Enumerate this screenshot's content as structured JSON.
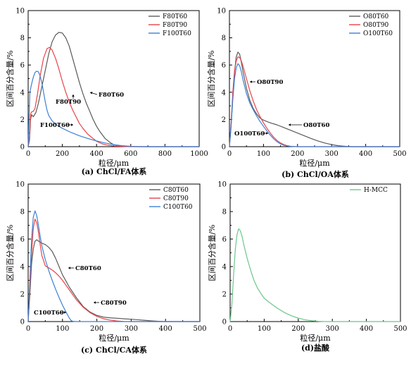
{
  "colors": {
    "black": "#5a5a5a",
    "red": "#e8434a",
    "blue": "#3d7fd6",
    "green": "#6cc78b"
  },
  "chart_data": [
    {
      "type": "line",
      "caption": "(a) ChCl/FA体系",
      "xlabel": "粒径/μm",
      "ylabel": "区间百分含量/%",
      "xlim": [
        0,
        1000
      ],
      "ylim": [
        0,
        10
      ],
      "xticks": [
        0,
        200,
        400,
        600,
        800,
        1000
      ],
      "yticks": [
        0,
        2,
        4,
        6,
        8,
        10
      ],
      "legend_position": "top-right",
      "series": [
        {
          "name": "F80T60",
          "color": "black",
          "x": [
            0,
            8,
            14,
            20,
            30,
            45,
            60,
            80,
            100,
            120,
            140,
            160,
            180,
            200,
            220,
            240,
            260,
            280,
            300,
            320,
            340,
            360,
            380,
            400,
            420,
            450,
            480,
            500,
            530,
            560,
            600,
            650,
            700,
            750,
            800,
            900,
            1000
          ],
          "y": [
            0,
            0.5,
            2.0,
            2.35,
            2.2,
            2.5,
            3.2,
            4.4,
            5.6,
            6.8,
            7.7,
            8.2,
            8.4,
            8.35,
            8.0,
            7.4,
            6.5,
            5.6,
            4.7,
            3.9,
            3.2,
            2.6,
            2.0,
            1.5,
            1.1,
            0.6,
            0.3,
            0.15,
            0.07,
            0.03,
            0.01,
            0,
            0,
            0,
            0,
            0,
            0
          ]
        },
        {
          "name": "F80T90",
          "color": "red",
          "x": [
            0,
            8,
            14,
            20,
            30,
            40,
            55,
            70,
            90,
            110,
            125,
            140,
            160,
            180,
            200,
            220,
            240,
            260,
            280,
            300,
            320,
            350,
            380,
            400,
            430,
            460,
            500,
            550,
            600,
            700,
            800,
            1000
          ],
          "y": [
            0,
            0.8,
            2.4,
            2.55,
            2.6,
            2.8,
            3.9,
            5.2,
            6.5,
            7.2,
            7.3,
            7.1,
            6.5,
            5.7,
            4.8,
            4.0,
            3.3,
            2.7,
            2.2,
            1.7,
            1.35,
            0.9,
            0.6,
            0.4,
            0.22,
            0.12,
            0.05,
            0.02,
            0,
            0,
            0,
            0
          ]
        },
        {
          "name": "F100T60",
          "color": "blue",
          "x": [
            0,
            5,
            10,
            20,
            30,
            40,
            50,
            60,
            70,
            80,
            90,
            100,
            110,
            120,
            140,
            160,
            180,
            200,
            250,
            300,
            350,
            400,
            450,
            500,
            550,
            600,
            650,
            700,
            800,
            1000
          ],
          "y": [
            0,
            2.0,
            4.0,
            4.6,
            5.1,
            5.45,
            5.55,
            5.5,
            5.2,
            4.7,
            4.0,
            3.3,
            2.7,
            2.3,
            1.9,
            1.65,
            1.5,
            1.35,
            1.05,
            0.8,
            0.6,
            0.42,
            0.27,
            0.15,
            0.07,
            0.03,
            0.01,
            0,
            0,
            0
          ]
        }
      ],
      "annotations": [
        {
          "text": "F80T60",
          "x": 405,
          "y": 3.5
        },
        {
          "text": "F80T90",
          "x": 165,
          "y": 3.02
        },
        {
          "text": "F100T60",
          "x": 130,
          "y": 1.17
        }
      ]
    },
    {
      "type": "line",
      "caption": "(b) ChCl/OA体系",
      "xlabel": "粒径/μm",
      "ylabel": "区间百分含量/%",
      "xlim": [
        0,
        500
      ],
      "ylim": [
        0,
        10
      ],
      "xticks": [
        0,
        100,
        200,
        300,
        400,
        500
      ],
      "yticks": [
        0,
        2,
        4,
        6,
        8,
        10
      ],
      "legend_position": "top-right",
      "series": [
        {
          "name": "O80T60",
          "color": "black",
          "x": [
            0,
            5,
            10,
            15,
            20,
            25,
            30,
            35,
            40,
            50,
            60,
            70,
            80,
            90,
            100,
            120,
            140,
            160,
            180,
            200,
            220,
            240,
            260,
            280,
            300,
            320,
            340,
            360,
            400,
            500
          ],
          "y": [
            0,
            1.5,
            3.8,
            5.5,
            6.6,
            6.95,
            6.8,
            6.2,
            5.5,
            4.3,
            3.4,
            2.8,
            2.4,
            2.1,
            1.95,
            1.75,
            1.6,
            1.4,
            1.2,
            1.0,
            0.8,
            0.6,
            0.42,
            0.27,
            0.15,
            0.07,
            0.03,
            0,
            0,
            0
          ]
        },
        {
          "name": "O80T90",
          "color": "red",
          "x": [
            0,
            5,
            10,
            15,
            20,
            25,
            30,
            35,
            40,
            50,
            60,
            70,
            80,
            90,
            100,
            110,
            120,
            130,
            140,
            150,
            160,
            170,
            180,
            200,
            250,
            300,
            400,
            500
          ],
          "y": [
            0,
            1.8,
            4.0,
            5.6,
            6.3,
            6.6,
            6.55,
            6.3,
            5.9,
            5.0,
            4.1,
            3.35,
            2.7,
            2.2,
            1.75,
            1.35,
            1.0,
            0.7,
            0.45,
            0.27,
            0.15,
            0.07,
            0.03,
            0,
            0,
            0,
            0,
            0
          ]
        },
        {
          "name": "O100T60",
          "color": "blue",
          "x": [
            0,
            5,
            10,
            15,
            20,
            25,
            30,
            35,
            40,
            50,
            60,
            70,
            80,
            90,
            100,
            110,
            120,
            130,
            140,
            150,
            160,
            170,
            180,
            200,
            300,
            400,
            500
          ],
          "y": [
            0,
            1.6,
            3.5,
            5.0,
            5.8,
            6.1,
            5.95,
            5.5,
            4.9,
            3.9,
            3.2,
            2.7,
            2.25,
            1.85,
            1.5,
            1.15,
            0.85,
            0.58,
            0.36,
            0.2,
            0.1,
            0.05,
            0.02,
            0,
            0,
            0,
            0
          ]
        }
      ],
      "annotations": [
        {
          "text": "O80T90",
          "x": 88,
          "y": 4.5
        },
        {
          "text": "O80T60",
          "x": 255,
          "y": 1.2
        },
        {
          "text": "O100T60",
          "x": 28,
          "y": 0.5
        }
      ]
    },
    {
      "type": "line",
      "caption": "(c) ChCl/CA体系",
      "xlabel": "粒径/μm",
      "ylabel": "区间百分含量/%",
      "xlim": [
        0,
        500
      ],
      "ylim": [
        0,
        10
      ],
      "xticks": [
        0,
        100,
        200,
        300,
        400,
        500
      ],
      "yticks": [
        0,
        2,
        4,
        6,
        8,
        10
      ],
      "legend_position": "top-right",
      "series": [
        {
          "name": "C80T60",
          "color": "black",
          "x": [
            0,
            5,
            10,
            15,
            20,
            25,
            30,
            40,
            50,
            60,
            70,
            80,
            90,
            100,
            120,
            140,
            160,
            180,
            200,
            220,
            240,
            260,
            280,
            300,
            320,
            340,
            360,
            380,
            400,
            500
          ],
          "y": [
            0,
            2.0,
            4.2,
            5.3,
            5.85,
            5.95,
            5.85,
            5.7,
            5.6,
            5.4,
            5.1,
            4.6,
            4.0,
            3.4,
            2.5,
            1.75,
            1.1,
            0.7,
            0.45,
            0.32,
            0.27,
            0.24,
            0.2,
            0.17,
            0.13,
            0.09,
            0.05,
            0.02,
            0,
            0
          ]
        },
        {
          "name": "C80T90",
          "color": "red",
          "x": [
            0,
            5,
            10,
            15,
            20,
            25,
            30,
            35,
            40,
            50,
            60,
            70,
            80,
            90,
            100,
            120,
            140,
            160,
            180,
            200,
            220,
            240,
            260,
            280,
            300,
            350,
            500
          ],
          "y": [
            0,
            2.5,
            5.0,
            6.8,
            7.45,
            7.2,
            6.5,
            5.6,
            4.8,
            4.05,
            3.9,
            3.75,
            3.55,
            3.3,
            3.0,
            2.3,
            1.6,
            1.05,
            0.65,
            0.38,
            0.2,
            0.1,
            0.04,
            0.01,
            0,
            0,
            0
          ]
        },
        {
          "name": "C100T60",
          "color": "blue",
          "x": [
            0,
            5,
            10,
            15,
            20,
            25,
            30,
            35,
            40,
            50,
            60,
            70,
            80,
            90,
            100,
            110,
            120,
            125,
            130,
            140,
            160,
            200,
            300,
            500
          ],
          "y": [
            0,
            3.0,
            6.0,
            7.6,
            8.05,
            7.7,
            7.0,
            6.2,
            5.5,
            4.5,
            3.7,
            3.0,
            2.35,
            1.75,
            1.2,
            0.7,
            0.25,
            0.08,
            0.02,
            0,
            0,
            0,
            0,
            0
          ]
        }
      ],
      "annotations": [
        {
          "text": "C80T60",
          "x": 130,
          "y": 3.35
        },
        {
          "text": "C80T90",
          "x": 208,
          "y": 0.9
        },
        {
          "text": "C100T60",
          "x": 18,
          "y": 0.2
        }
      ]
    },
    {
      "type": "line",
      "caption": "(d)盐酸",
      "xlabel": "粒径/μm",
      "ylabel": "区间百分含量/%",
      "xlim": [
        0,
        500
      ],
      "ylim": [
        0,
        10
      ],
      "xticks": [
        0,
        100,
        200,
        300,
        400,
        500
      ],
      "yticks": [
        0,
        2,
        4,
        6,
        8,
        10
      ],
      "legend_position": "top-right",
      "series": [
        {
          "name": "H-MCC",
          "color": "green",
          "x": [
            0,
            5,
            10,
            15,
            20,
            25,
            30,
            35,
            40,
            50,
            60,
            70,
            80,
            90,
            100,
            120,
            140,
            160,
            180,
            200,
            220,
            240,
            260,
            280,
            300,
            400,
            500
          ],
          "y": [
            0,
            1.2,
            3.3,
            5.2,
            6.3,
            6.75,
            6.6,
            6.2,
            5.6,
            4.6,
            3.75,
            3.0,
            2.45,
            2.05,
            1.7,
            1.3,
            0.95,
            0.65,
            0.42,
            0.25,
            0.13,
            0.06,
            0.02,
            0,
            0,
            0,
            0
          ]
        }
      ],
      "annotations": []
    }
  ]
}
